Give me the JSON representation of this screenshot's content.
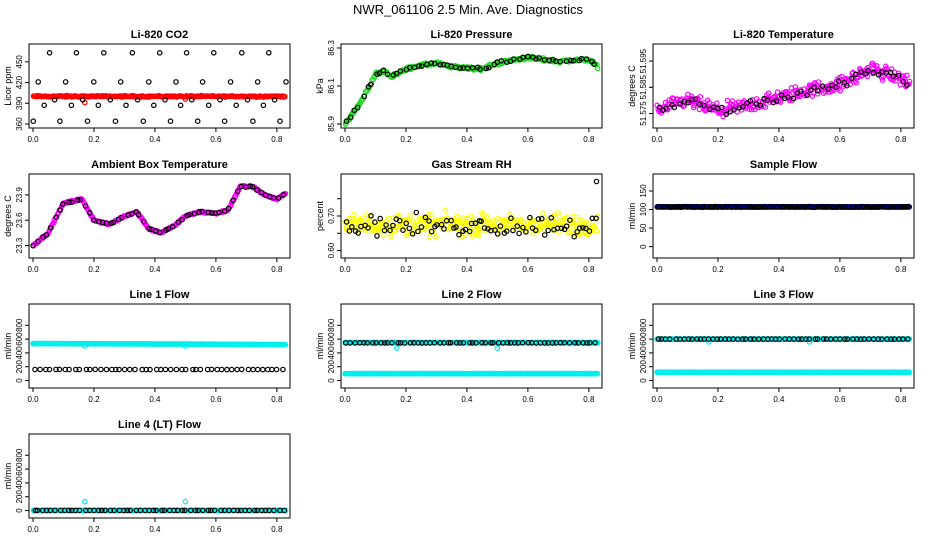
{
  "figure": {
    "title": "NWR_061106  2.5 Min. Ave. Diagnostics"
  },
  "chart_data": [
    {
      "type": "scatter",
      "title": "Li-820 CO2",
      "xlabel": "",
      "ylabel": "Licor ppm",
      "xlim": [
        0.0,
        0.83
      ],
      "ylim": [
        360,
        470
      ],
      "yticks": [
        360,
        390,
        420,
        450
      ],
      "xticks": [
        0.0,
        0.2,
        0.4,
        0.6,
        0.8
      ],
      "ytick_labels": [
        "360",
        "390",
        "420",
        "450"
      ],
      "xtick_labels": [
        "0.0",
        "0.2",
        "0.4",
        "0.6",
        "0.8"
      ],
      "series": [
        {
          "color": "#ff0000",
          "kind": "const",
          "value": 400,
          "jitter": 1.5,
          "density": 220,
          "outliers": [
            [
              0.17,
              391
            ],
            [
              0.5,
              396
            ]
          ]
        },
        {
          "color": "#000000",
          "kind": "levels",
          "levels": [
            364,
            387,
            395,
            421,
            463
          ],
          "step": 0.018
        }
      ]
    },
    {
      "type": "scatter",
      "title": "Li-820 Pressure",
      "xlabel": "",
      "ylabel": "kPa",
      "xlim": [
        0.0,
        0.83
      ],
      "ylim": [
        85.9,
        86.3
      ],
      "yticks": [
        85.9,
        86.1,
        86.3
      ],
      "xticks": [
        0.0,
        0.2,
        0.4,
        0.6,
        0.8
      ],
      "ytick_labels": [
        "85.9",
        "86.1",
        "86.3"
      ],
      "xtick_labels": [
        "0.0",
        "0.2",
        "0.4",
        "0.6",
        "0.8"
      ],
      "series": [
        {
          "color": "#22dd22",
          "kind": "trend",
          "jitter": 0.012,
          "density": 300,
          "points": [
            [
              0.0,
              85.9
            ],
            [
              0.05,
              86.01
            ],
            [
              0.08,
              86.1
            ],
            [
              0.1,
              86.16
            ],
            [
              0.13,
              86.18
            ],
            [
              0.15,
              86.15
            ],
            [
              0.22,
              86.2
            ],
            [
              0.3,
              86.22
            ],
            [
              0.35,
              86.2
            ],
            [
              0.45,
              86.19
            ],
            [
              0.5,
              86.22
            ],
            [
              0.6,
              86.25
            ],
            [
              0.7,
              86.23
            ],
            [
              0.8,
              86.24
            ],
            [
              0.83,
              86.2
            ]
          ]
        },
        {
          "color": "#000000",
          "kind": "trend",
          "jitter": 0.012,
          "density": 60,
          "points": [
            [
              0.0,
              85.9
            ],
            [
              0.05,
              86.01
            ],
            [
              0.08,
              86.1
            ],
            [
              0.1,
              86.16
            ],
            [
              0.13,
              86.18
            ],
            [
              0.15,
              86.15
            ],
            [
              0.22,
              86.2
            ],
            [
              0.3,
              86.22
            ],
            [
              0.35,
              86.2
            ],
            [
              0.45,
              86.19
            ],
            [
              0.5,
              86.22
            ],
            [
              0.6,
              86.25
            ],
            [
              0.7,
              86.23
            ],
            [
              0.8,
              86.24
            ],
            [
              0.83,
              86.2
            ]
          ]
        }
      ]
    },
    {
      "type": "scatter",
      "title": "Li-820 Temperature",
      "xlabel": "",
      "ylabel": "degrees C",
      "xlim": [
        0.0,
        0.83
      ],
      "ylim": [
        51.571,
        51.6
      ],
      "yticks": [
        51.575,
        51.585,
        51.595
      ],
      "xticks": [
        0.0,
        0.2,
        0.4,
        0.6,
        0.8
      ],
      "ytick_labels": [
        "51.575",
        "51.585",
        "51.595"
      ],
      "xtick_labels": [
        "0.0",
        "0.2",
        "0.4",
        "0.6",
        "0.8"
      ],
      "series": [
        {
          "color": "#ff00ff",
          "kind": "trend",
          "jitter": 0.004,
          "density": 300,
          "points": [
            [
              0.0,
              51.576
            ],
            [
              0.1,
              51.58
            ],
            [
              0.2,
              51.576
            ],
            [
              0.3,
              51.578
            ],
            [
              0.4,
              51.581
            ],
            [
              0.5,
              51.584
            ],
            [
              0.6,
              51.586
            ],
            [
              0.7,
              51.592
            ],
            [
              0.76,
              51.59
            ],
            [
              0.83,
              51.587
            ]
          ]
        },
        {
          "color": "#000000",
          "kind": "trend",
          "jitter": 0.003,
          "density": 60,
          "points": [
            [
              0.0,
              51.576
            ],
            [
              0.1,
              51.58
            ],
            [
              0.2,
              51.576
            ],
            [
              0.3,
              51.578
            ],
            [
              0.4,
              51.581
            ],
            [
              0.5,
              51.584
            ],
            [
              0.6,
              51.586
            ],
            [
              0.7,
              51.592
            ],
            [
              0.76,
              51.59
            ],
            [
              0.83,
              51.587
            ]
          ]
        }
      ]
    },
    {
      "type": "scatter",
      "title": "Ambient Box Temperature",
      "xlabel": "",
      "ylabel": "degrees C",
      "xlim": [
        0.0,
        0.83
      ],
      "ylim": [
        23.2,
        24.1
      ],
      "yticks": [
        23.3,
        23.6,
        23.9
      ],
      "xticks": [
        0.0,
        0.2,
        0.4,
        0.6,
        0.8
      ],
      "ytick_labels": [
        "23.3",
        "23.6",
        "23.9"
      ],
      "xtick_labels": [
        "0.0",
        "0.2",
        "0.4",
        "0.6",
        "0.8"
      ],
      "series": [
        {
          "color": "#ff00ff",
          "kind": "trend",
          "jitter": 0.015,
          "density": 320,
          "points": [
            [
              0.0,
              23.3
            ],
            [
              0.05,
              23.45
            ],
            [
              0.1,
              23.8
            ],
            [
              0.16,
              23.85
            ],
            [
              0.2,
              23.6
            ],
            [
              0.25,
              23.55
            ],
            [
              0.3,
              23.65
            ],
            [
              0.34,
              23.7
            ],
            [
              0.38,
              23.5
            ],
            [
              0.42,
              23.45
            ],
            [
              0.47,
              23.55
            ],
            [
              0.5,
              23.65
            ],
            [
              0.55,
              23.7
            ],
            [
              0.6,
              23.68
            ],
            [
              0.64,
              23.72
            ],
            [
              0.68,
              24.0
            ],
            [
              0.72,
              24.0
            ],
            [
              0.76,
              23.9
            ],
            [
              0.8,
              23.85
            ],
            [
              0.83,
              23.92
            ]
          ]
        },
        {
          "color": "#000000",
          "kind": "trend",
          "jitter": 0.01,
          "density": 60,
          "points": [
            [
              0.0,
              23.3
            ],
            [
              0.05,
              23.45
            ],
            [
              0.1,
              23.8
            ],
            [
              0.16,
              23.85
            ],
            [
              0.2,
              23.6
            ],
            [
              0.25,
              23.55
            ],
            [
              0.3,
              23.65
            ],
            [
              0.34,
              23.7
            ],
            [
              0.38,
              23.5
            ],
            [
              0.42,
              23.45
            ],
            [
              0.47,
              23.55
            ],
            [
              0.5,
              23.65
            ],
            [
              0.55,
              23.7
            ],
            [
              0.6,
              23.68
            ],
            [
              0.64,
              23.72
            ],
            [
              0.68,
              24.0
            ],
            [
              0.72,
              24.0
            ],
            [
              0.76,
              23.9
            ],
            [
              0.8,
              23.85
            ],
            [
              0.83,
              23.92
            ]
          ]
        }
      ]
    },
    {
      "type": "scatter",
      "title": "Gas Stream RH",
      "xlabel": "",
      "ylabel": "percent",
      "xlim": [
        0.0,
        0.83
      ],
      "ylim": [
        0.59,
        0.81
      ],
      "yticks": [
        0.6,
        0.65,
        0.7,
        0.75
      ],
      "xticks": [
        0.0,
        0.2,
        0.4,
        0.6,
        0.8
      ],
      "ytick_labels": [
        "0.60",
        "",
        "0.70",
        ""
      ],
      "xtick_labels": [
        "0.0",
        "0.2",
        "0.4",
        "0.6",
        "0.8"
      ],
      "series": [
        {
          "color": "#ffff00",
          "kind": "const",
          "value": 0.675,
          "jitter": 0.045,
          "density": 320
        },
        {
          "color": "#000000",
          "kind": "const",
          "value": 0.672,
          "jitter": 0.045,
          "density": 80,
          "outliers": [
            [
              0.825,
              0.8
            ]
          ]
        }
      ]
    },
    {
      "type": "scatter",
      "title": "Sample Flow",
      "xlabel": "",
      "ylabel": "ml/min",
      "xlim": [
        0.0,
        0.83
      ],
      "ylim": [
        -20,
        185
      ],
      "yticks": [
        0,
        50,
        100,
        150
      ],
      "xticks": [
        0.0,
        0.2,
        0.4,
        0.6,
        0.8
      ],
      "ytick_labels": [
        "0",
        "50",
        "100",
        "150"
      ],
      "xtick_labels": [
        "0.0",
        "0.2",
        "0.4",
        "0.6",
        "0.8"
      ],
      "series": [
        {
          "color": "#0000cc",
          "kind": "const",
          "value": 107,
          "jitter": 1,
          "density": 300
        },
        {
          "color": "#000000",
          "kind": "const",
          "value": 107,
          "jitter": 1,
          "density": 120
        }
      ]
    },
    {
      "type": "scatter",
      "title": "Line 1 Flow",
      "xlabel": "",
      "ylabel": "ml/min",
      "xlim": [
        0.0,
        0.83
      ],
      "ylim": [
        -50,
        1050
      ],
      "yticks": [
        0,
        200,
        400,
        600,
        800
      ],
      "xticks": [
        0.0,
        0.2,
        0.4,
        0.6,
        0.8
      ],
      "ytick_labels": [
        "0",
        "200",
        "400",
        "600",
        "800"
      ],
      "xtick_labels": [
        "0.0",
        "0.2",
        "0.4",
        "0.6",
        "0.8"
      ],
      "series": [
        {
          "color": "#00eeee",
          "kind": "trend",
          "jitter": 3,
          "density": 300,
          "points": [
            [
              0.0,
              535
            ],
            [
              0.4,
              530
            ],
            [
              0.83,
              520
            ]
          ],
          "outliers": [
            [
              0.17,
              500
            ],
            [
              0.5,
              500
            ]
          ]
        },
        {
          "color": "#000000",
          "kind": "const",
          "value": 160,
          "jitter": 2,
          "density": 50
        }
      ]
    },
    {
      "type": "scatter",
      "title": "Line 2 Flow",
      "xlabel": "",
      "ylabel": "ml/min",
      "xlim": [
        0.0,
        0.83
      ],
      "ylim": [
        -50,
        1050
      ],
      "yticks": [
        0,
        200,
        400,
        600,
        800
      ],
      "xticks": [
        0.0,
        0.2,
        0.4,
        0.6,
        0.8
      ],
      "ytick_labels": [
        "0",
        "200",
        "400",
        "600",
        "800"
      ],
      "xtick_labels": [
        "0.0",
        "0.2",
        "0.4",
        "0.6",
        "0.8"
      ],
      "series": [
        {
          "color": "#00eeee",
          "kind": "const",
          "value": 100,
          "jitter": 3,
          "density": 300
        },
        {
          "color": "#00eeee",
          "kind": "const",
          "value": 550,
          "jitter": 3,
          "density": 300,
          "outliers": [
            [
              0.17,
              470
            ],
            [
              0.5,
              470
            ]
          ]
        },
        {
          "color": "#000000",
          "kind": "const",
          "value": 545,
          "jitter": 2,
          "density": 60
        }
      ]
    },
    {
      "type": "scatter",
      "title": "Line 3 Flow",
      "xlabel": "",
      "ylabel": "ml/min",
      "xlim": [
        0.0,
        0.83
      ],
      "ylim": [
        -50,
        1050
      ],
      "yticks": [
        0,
        200,
        400,
        600,
        800
      ],
      "xticks": [
        0.0,
        0.2,
        0.4,
        0.6,
        0.8
      ],
      "ytick_labels": [
        "0",
        "200",
        "400",
        "600",
        "800"
      ],
      "xtick_labels": [
        "0.0",
        "0.2",
        "0.4",
        "0.6",
        "0.8"
      ],
      "series": [
        {
          "color": "#00eeee",
          "kind": "const",
          "value": 120,
          "jitter": 3,
          "density": 300
        },
        {
          "color": "#00eeee",
          "kind": "const",
          "value": 600,
          "jitter": 3,
          "density": 300,
          "outliers": [
            [
              0.17,
              560
            ],
            [
              0.5,
              560
            ]
          ]
        },
        {
          "color": "#000000",
          "kind": "const",
          "value": 600,
          "jitter": 2,
          "density": 60
        }
      ]
    },
    {
      "type": "scatter",
      "title": "Line 4 (LT) Flow",
      "xlabel": "",
      "ylabel": "ml/min",
      "xlim": [
        0.0,
        0.83
      ],
      "ylim": [
        -50,
        1050
      ],
      "yticks": [
        0,
        200,
        400,
        600,
        800
      ],
      "xticks": [
        0.0,
        0.2,
        0.4,
        0.6,
        0.8
      ],
      "ytick_labels": [
        "0",
        "200",
        "400",
        "600",
        "800"
      ],
      "xtick_labels": [
        "0.0",
        "0.2",
        "0.4",
        "0.6",
        "0.8"
      ],
      "series": [
        {
          "color": "#00eeee",
          "kind": "const",
          "value": 2,
          "jitter": 2,
          "density": 300,
          "outliers": [
            [
              0.17,
              130
            ],
            [
              0.5,
              130
            ]
          ]
        },
        {
          "color": "#000000",
          "kind": "const",
          "value": 2,
          "jitter": 1,
          "density": 60
        }
      ]
    }
  ]
}
